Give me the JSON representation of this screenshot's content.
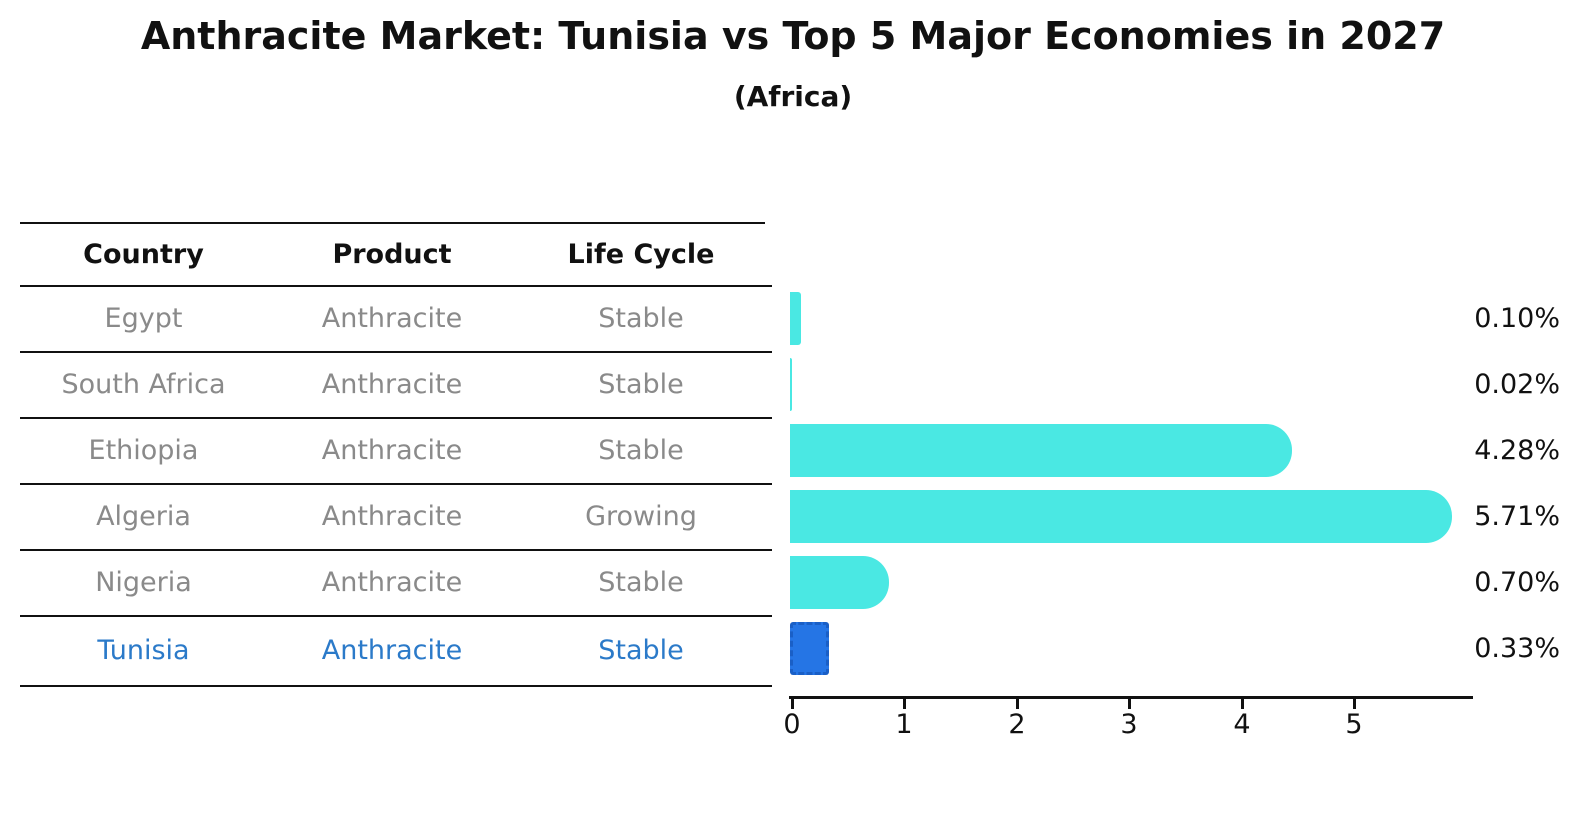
{
  "title": "Anthracite Market: Tunisia vs Top 5 Major Economies in 2027",
  "subtitle": "(Africa)",
  "table": {
    "headers": [
      "Country",
      "Product",
      "Life Cycle"
    ],
    "rows": [
      {
        "country": "Egypt",
        "product": "Anthracite",
        "life_cycle": "Stable"
      },
      {
        "country": "South Africa",
        "product": "Anthracite",
        "life_cycle": "Stable"
      },
      {
        "country": "Ethiopia",
        "product": "Anthracite",
        "life_cycle": "Stable"
      },
      {
        "country": "Algeria",
        "product": "Anthracite",
        "life_cycle": "Growing"
      },
      {
        "country": "Nigeria",
        "product": "Anthracite",
        "life_cycle": "Stable"
      },
      {
        "country": "Tunisia",
        "product": "Anthracite",
        "life_cycle": "Stable"
      }
    ]
  },
  "chart_data": {
    "type": "bar",
    "orientation": "horizontal",
    "title": "Anthracite Market: Tunisia vs Top 5 Major Economies in 2027 (Africa)",
    "categories": [
      "Egypt",
      "South Africa",
      "Ethiopia",
      "Algeria",
      "Nigeria",
      "Tunisia"
    ],
    "values": [
      0.1,
      0.02,
      4.28,
      5.71,
      0.7,
      0.33
    ],
    "value_labels": [
      "0.10%",
      "0.02%",
      "4.28%",
      "5.71%",
      "0.70%",
      "0.33%"
    ],
    "xlim": [
      0,
      6
    ],
    "xticks": [
      "0",
      "1",
      "2",
      "3",
      "4",
      "5"
    ],
    "grid": false,
    "legend": false,
    "highlight_index": 5,
    "bar_color": "#4AE8E3",
    "highlight_color": "#2575E5",
    "highlight_border_color": "#1A5FC6"
  },
  "colors": {
    "text": "#111111",
    "muted_text": "#8A8A8A",
    "highlight_text": "#2B7AC9",
    "background": "#FFFFFF"
  }
}
